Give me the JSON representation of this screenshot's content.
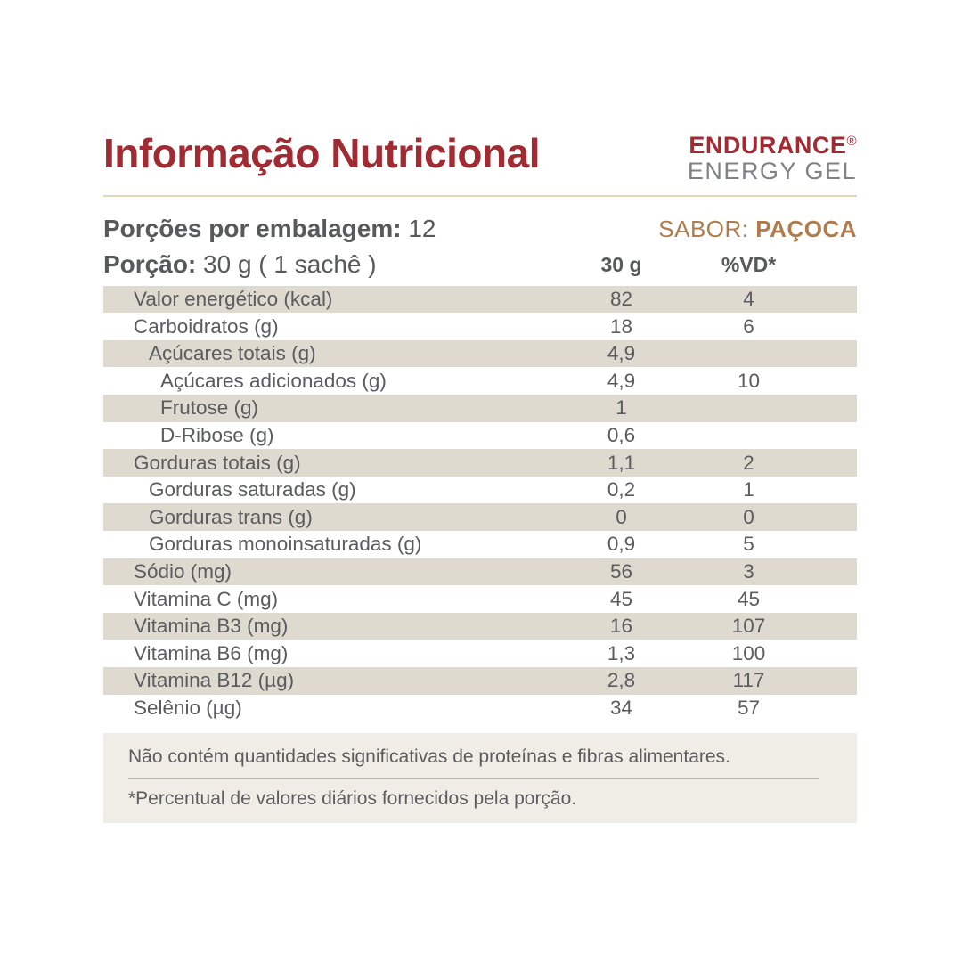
{
  "header": {
    "title": "Informação Nutricional",
    "brand_name": "ENDURANCE",
    "brand_reg": "®",
    "brand_sub": "ENERGY GEL"
  },
  "serving": {
    "servings_label": "Porções por embalagem:",
    "servings_value": " 12",
    "flavor_label": "SABOR: ",
    "flavor_value": "PAÇOCA",
    "portion_label": "Porção:",
    "portion_value": " 30 g ( 1 sachê )"
  },
  "table": {
    "col_amount": "30 g",
    "col_vd": "%VD*",
    "rows": [
      {
        "name": "Valor energético (kcal)",
        "amount": "82",
        "vd": "4",
        "indent": 0
      },
      {
        "name": "Carboidratos (g)",
        "amount": "18",
        "vd": "6",
        "indent": 0
      },
      {
        "name": "Açúcares totais (g)",
        "amount": "4,9",
        "vd": "",
        "indent": 1
      },
      {
        "name": "Açúcares adicionados (g)",
        "amount": "4,9",
        "vd": "10",
        "indent": 2
      },
      {
        "name": "Frutose (g)",
        "amount": "1",
        "vd": "",
        "indent": 2
      },
      {
        "name": "D-Ribose (g)",
        "amount": "0,6",
        "vd": "",
        "indent": 2
      },
      {
        "name": "Gorduras totais (g)",
        "amount": "1,1",
        "vd": "2",
        "indent": 0
      },
      {
        "name": "Gorduras saturadas (g)",
        "amount": "0,2",
        "vd": "1",
        "indent": 1
      },
      {
        "name": "Gorduras trans (g)",
        "amount": "0",
        "vd": "0",
        "indent": 1
      },
      {
        "name": "Gorduras monoinsaturadas (g)",
        "amount": "0,9",
        "vd": "5",
        "indent": 1
      },
      {
        "name": "Sódio (mg)",
        "amount": "56",
        "vd": "3",
        "indent": 0
      },
      {
        "name": "Vitamina C (mg)",
        "amount": "45",
        "vd": "45",
        "indent": 0
      },
      {
        "name": "Vitamina B3 (mg)",
        "amount": "16",
        "vd": "107",
        "indent": 0
      },
      {
        "name": "Vitamina B6 (mg)",
        "amount": "1,3",
        "vd": "100",
        "indent": 0
      },
      {
        "name": "Vitamina B12 (µg)",
        "amount": "2,8",
        "vd": "117",
        "indent": 0
      },
      {
        "name": "Selênio (µg)",
        "amount": "34",
        "vd": "57",
        "indent": 0
      }
    ]
  },
  "footnotes": {
    "note1": "Não contém quantidades significativas de proteínas e fibras alimentares.",
    "note2": "*Percentual de valores diários fornecidos pela porção."
  },
  "colors": {
    "accent_red": "#A02B32",
    "caramel": "#B17C4B",
    "row_beige": "#DEDACF",
    "footer_bg": "#F0EDE6",
    "tan_line": "#D8C8A4",
    "footer_line": "#C9BA97",
    "text_dark": "#58595B",
    "text_row": "#5B5C5F",
    "brand_gray": "#808285"
  }
}
